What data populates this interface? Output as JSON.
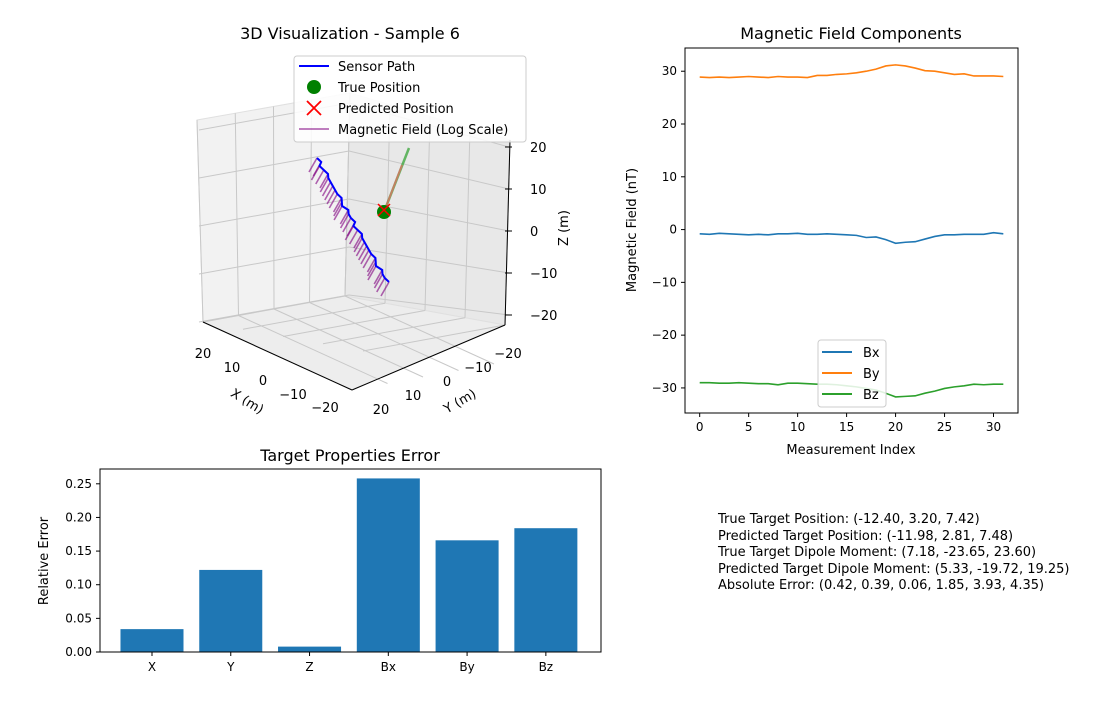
{
  "chart_data": [
    {
      "type": "scatter3d",
      "title": "3D Visualization - Sample 6",
      "xlabel": "X (m)",
      "ylabel": "Y (m)",
      "zlabel": "Z (m)",
      "xticks": [
        "20",
        "10",
        "0",
        "−10",
        "−20"
      ],
      "yticks": [
        "−20",
        "−10",
        "0",
        "10",
        "20"
      ],
      "zticks": [
        "20",
        "10",
        "0",
        "−10",
        "−20"
      ],
      "legend": [
        "Sensor Path",
        "True Position",
        "Predicted Position",
        "Magnetic Field (Log Scale)"
      ],
      "legend_position": "top-right",
      "colors": {
        "path": "#0000ff",
        "true": "#008000",
        "pred": "#ff0000",
        "field": "#800080"
      }
    },
    {
      "type": "line",
      "title": "Magnetic Field Components",
      "xlabel": "Measurement Index",
      "ylabel": "Magnetic Field (nT)",
      "xlim": [
        -1.5,
        32.5
      ],
      "ylim": [
        -34.75,
        34.4
      ],
      "xticks": [
        0,
        5,
        10,
        15,
        20,
        25,
        30
      ],
      "yticks": [
        -30,
        -20,
        -10,
        0,
        10,
        20,
        30
      ],
      "legend_position": "lower-center",
      "series": [
        {
          "name": "Bx",
          "color": "#1f77b4",
          "values": [
            -0.8,
            -0.9,
            -0.7,
            -0.8,
            -0.9,
            -1.0,
            -0.9,
            -1.0,
            -0.8,
            -0.8,
            -0.7,
            -0.9,
            -0.9,
            -0.8,
            -0.9,
            -1.0,
            -1.1,
            -1.5,
            -1.4,
            -1.9,
            -2.6,
            -2.4,
            -2.3,
            -1.8,
            -1.3,
            -1.0,
            -1.0,
            -0.9,
            -0.9,
            -0.9,
            -0.6,
            -0.8
          ]
        },
        {
          "name": "By",
          "color": "#ff7f0e",
          "values": [
            28.9,
            28.8,
            28.9,
            28.8,
            28.9,
            29.0,
            28.9,
            28.8,
            29.0,
            28.9,
            28.9,
            28.8,
            29.2,
            29.2,
            29.4,
            29.5,
            29.7,
            30.0,
            30.4,
            31.0,
            31.2,
            31.0,
            30.6,
            30.1,
            30.0,
            29.7,
            29.4,
            29.5,
            29.1,
            29.1,
            29.1,
            29.0
          ]
        },
        {
          "name": "Bz",
          "color": "#2ca02c",
          "values": [
            -29.0,
            -29.0,
            -29.1,
            -29.1,
            -29.0,
            -29.1,
            -29.2,
            -29.2,
            -29.4,
            -29.1,
            -29.1,
            -29.2,
            -29.3,
            -29.3,
            -29.4,
            -29.6,
            -29.8,
            -30.1,
            -30.4,
            -31.0,
            -31.7,
            -31.6,
            -31.5,
            -31.0,
            -30.6,
            -30.1,
            -29.8,
            -29.6,
            -29.3,
            -29.4,
            -29.3,
            -29.3
          ]
        }
      ]
    },
    {
      "type": "bar",
      "title": "Target Properties Error",
      "xlabel": "",
      "ylabel": "Relative Error",
      "categories": [
        "X",
        "Y",
        "Z",
        "Bx",
        "By",
        "Bz"
      ],
      "values": [
        0.034,
        0.122,
        0.008,
        0.258,
        0.166,
        0.184
      ],
      "ylim": [
        0,
        0.272
      ],
      "yticks": [
        0.0,
        0.05,
        0.1,
        0.15,
        0.2,
        0.25
      ],
      "color": "#1f77b4"
    }
  ],
  "info": {
    "lines": [
      "True Target Position: (-12.40, 3.20, 7.42)",
      "Predicted Target Position: (-11.98, 2.81, 7.48)",
      "True Target Dipole Moment: (7.18, -23.65, 23.60)",
      "Predicted Target Dipole Moment: (5.33, -19.72, 19.25)",
      "Absolute Error: (0.42, 0.39, 0.06, 1.85, 3.93, 4.35)"
    ]
  }
}
